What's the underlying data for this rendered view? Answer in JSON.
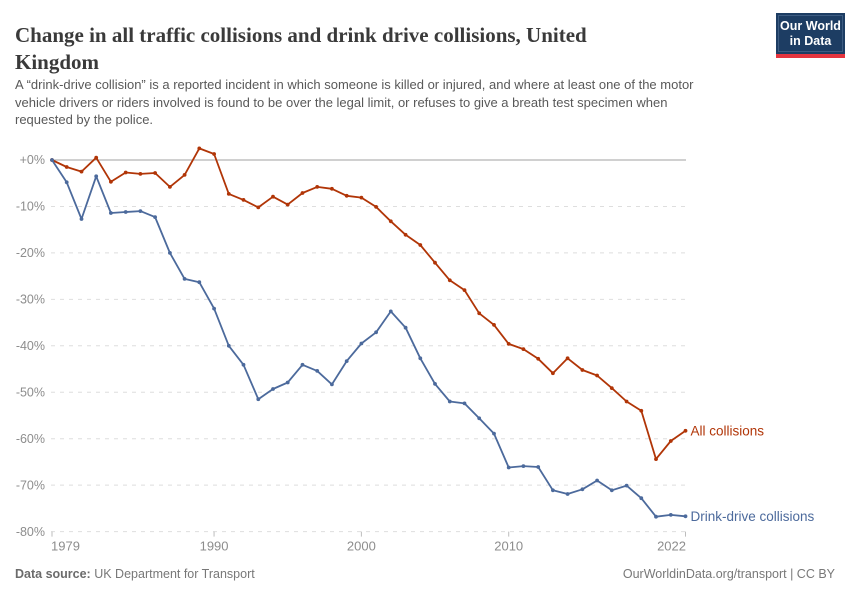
{
  "header": {
    "title_lines": [
      "Change in all traffic collisions and drink drive collisions, United",
      "Kingdom"
    ],
    "subtitle_lines": [
      "A “drink-drive collision” is a reported incident in which someone is killed or injured, and where at least one of the motor",
      "vehicle drivers or riders involved is found to be over the legal limit, or refuses to give a breath test specimen when",
      "requested by the police."
    ],
    "logo": {
      "line1": "Our World",
      "line2": "in Data",
      "bg_color": "#1d3d63",
      "accent_color": "#e5353f"
    }
  },
  "chart_data": {
    "type": "line",
    "title": "Change in all traffic collisions and drink drive collisions, United Kingdom",
    "xlabel": "",
    "ylabel": "",
    "x": [
      1979,
      1980,
      1981,
      1982,
      1983,
      1984,
      1985,
      1986,
      1987,
      1988,
      1989,
      1990,
      1991,
      1992,
      1993,
      1994,
      1995,
      1996,
      1997,
      1998,
      1999,
      2000,
      2001,
      2002,
      2003,
      2004,
      2005,
      2006,
      2007,
      2008,
      2009,
      2010,
      2011,
      2012,
      2013,
      2014,
      2015,
      2016,
      2017,
      2018,
      2019,
      2020,
      2021,
      2022
    ],
    "series": [
      {
        "name": "All collisions",
        "color": "#b13507",
        "values": [
          0,
          -1.5,
          -2.5,
          0.5,
          -4.7,
          -2.7,
          -3.0,
          -2.8,
          -5.8,
          -3.2,
          2.5,
          1.3,
          -7.3,
          -8.6,
          -10.2,
          -7.9,
          -9.6,
          -7.1,
          -5.8,
          -6.2,
          -7.7,
          -8.1,
          -10.1,
          -13.2,
          -16.1,
          -18.3,
          -22.1,
          -25.9,
          -28.0,
          -33.0,
          -35.5,
          -39.6,
          -40.7,
          -42.8,
          -45.9,
          -42.7,
          -45.2,
          -46.4,
          -49.1,
          -52.0,
          -54.0,
          -64.4,
          -60.5,
          -58.3
        ]
      },
      {
        "name": "Drink-drive collisions",
        "color": "#4c6a9c",
        "values": [
          0,
          -4.8,
          -12.7,
          -3.5,
          -11.4,
          -11.2,
          -11.0,
          -12.3,
          -20.0,
          -25.6,
          -26.3,
          -32.0,
          -40.0,
          -44.1,
          -51.5,
          -49.3,
          -47.9,
          -44.1,
          -45.4,
          -48.3,
          -43.3,
          -39.5,
          -37.1,
          -32.6,
          -36.1,
          -42.7,
          -48.2,
          -52.0,
          -52.4,
          -55.6,
          -58.9,
          -66.2,
          -65.9,
          -66.1,
          -71.1,
          -71.9,
          -70.9,
          -69.0,
          -71.1,
          -70.1,
          -72.8,
          -76.8,
          -76.4,
          -76.7
        ]
      }
    ],
    "ylim": [
      -80,
      2.5
    ],
    "yticks": [
      0,
      -10,
      -20,
      -30,
      -40,
      -50,
      -60,
      -70,
      -80
    ],
    "ytick_labels": [
      "+0%",
      "-10%",
      "-20%",
      "-30%",
      "-40%",
      "-50%",
      "-60%",
      "-70%",
      "-80%"
    ],
    "xticks": [
      1979,
      1990,
      2000,
      2010,
      2022
    ],
    "grid": "horizontal dashed, solid zero line",
    "legend_position": "end-of-line labels",
    "colors": {
      "grid": "#dedede",
      "zero_line": "#a1a1a1",
      "tick_label": "#8d8d8d",
      "tick_mark": "#bdbdbd"
    }
  },
  "footer": {
    "source_label": "Data source:",
    "source_value": "UK Department for Transport",
    "attribution": "OurWorldinData.org/transport | CC BY"
  }
}
